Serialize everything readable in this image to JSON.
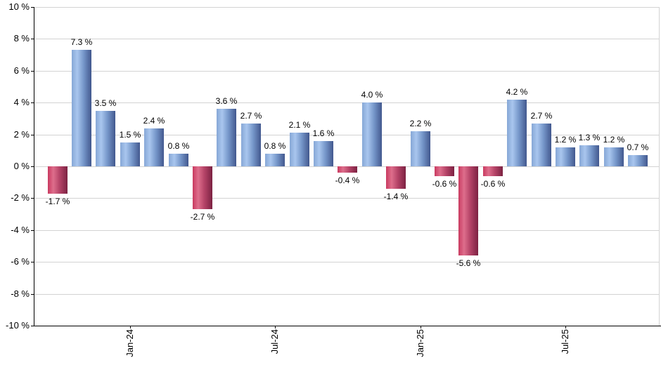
{
  "chart_data": {
    "type": "bar",
    "title": "",
    "description": "Monthly percentage returns bar chart",
    "bars": [
      {
        "value": -1.7,
        "label": "-1.7 %"
      },
      {
        "value": 7.3,
        "label": "7.3 %"
      },
      {
        "value": 3.5,
        "label": "3.5 %"
      },
      {
        "value": 1.5,
        "label": "1.5 %"
      },
      {
        "value": 2.4,
        "label": "2.4 %"
      },
      {
        "value": 0.8,
        "label": "0.8 %"
      },
      {
        "value": -2.7,
        "label": "-2.7 %"
      },
      {
        "value": 3.6,
        "label": "3.6 %"
      },
      {
        "value": 2.7,
        "label": "2.7 %"
      },
      {
        "value": 0.8,
        "label": "0.8 %"
      },
      {
        "value": 2.1,
        "label": "2.1 %"
      },
      {
        "value": 1.6,
        "label": "1.6 %"
      },
      {
        "value": -0.4,
        "label": "-0.4 %"
      },
      {
        "value": 4.0,
        "label": "4.0 %"
      },
      {
        "value": -1.4,
        "label": "-1.4 %"
      },
      {
        "value": 2.2,
        "label": "2.2 %"
      },
      {
        "value": -0.6,
        "label": "-0.6 %"
      },
      {
        "value": -5.6,
        "label": "-5.6 %"
      },
      {
        "value": -0.6,
        "label": "-0.6 %"
      },
      {
        "value": 4.2,
        "label": "4.2 %"
      },
      {
        "value": 2.7,
        "label": "2.7 %"
      },
      {
        "value": 1.2,
        "label": "1.2 %"
      },
      {
        "value": 1.3,
        "label": "1.3 %"
      },
      {
        "value": 1.2,
        "label": "1.2 %"
      },
      {
        "value": 0.7,
        "label": "0.7 %"
      }
    ],
    "x_ticks": [
      {
        "bar_index": 3,
        "label": "Jan-24"
      },
      {
        "bar_index": 9,
        "label": "Jul-24"
      },
      {
        "bar_index": 15,
        "label": "Jan-25"
      },
      {
        "bar_index": 21,
        "label": "Jul-25"
      }
    ],
    "y_axis": {
      "min": -10,
      "max": 10,
      "step": 2,
      "tick_labels": [
        "10 %",
        "8 %",
        "6 %",
        "4 %",
        "2 %",
        "0 %",
        "-2 %",
        "-4 %",
        "-6 %",
        "-8 %",
        "-10 %"
      ]
    },
    "ylim": [
      -10,
      10
    ],
    "grid": true,
    "legend": false,
    "colors": {
      "positive_bar_gradient": [
        "#86a7d6",
        "#a9c6ee",
        "#7697ca",
        "#42588e"
      ],
      "negative_bar_gradient": [
        "#c93a60",
        "#de6e8c",
        "#b44367",
        "#7c2242"
      ],
      "gridline": "#d3d3d3",
      "axis": "#000000",
      "label_text": "#000000",
      "background": "#ffffff"
    }
  }
}
